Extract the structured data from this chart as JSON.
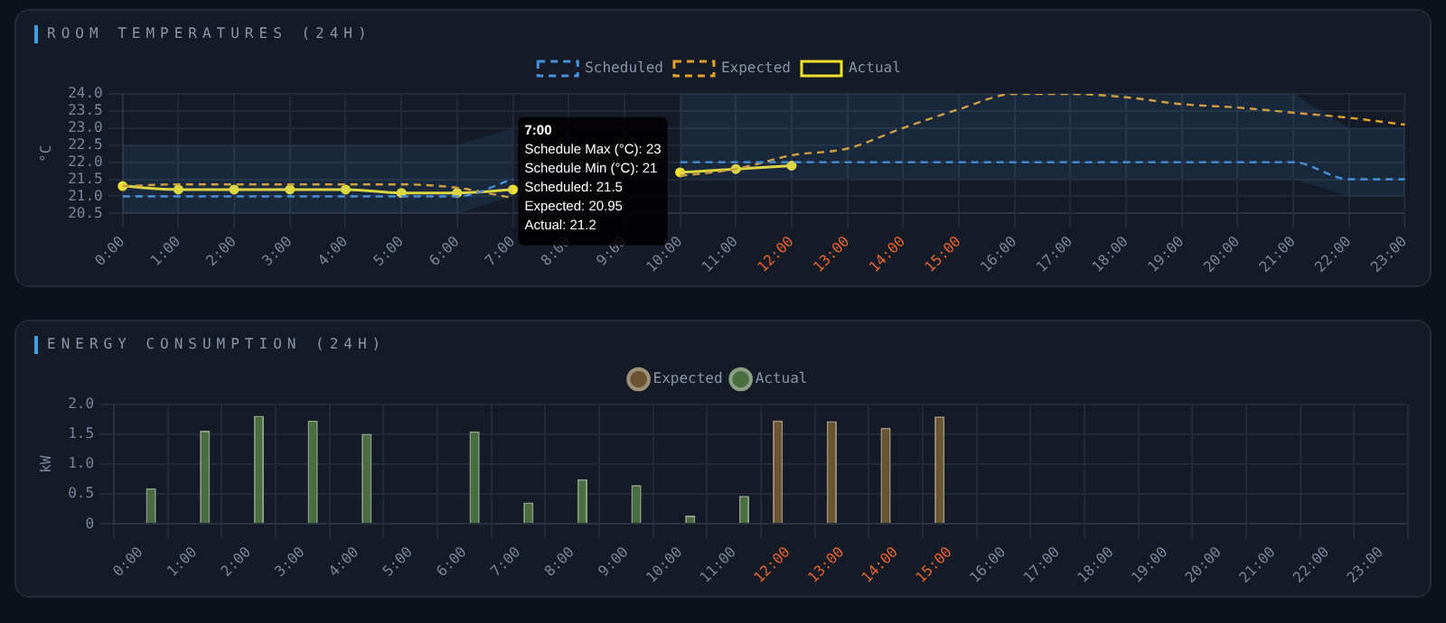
{
  "chart_data": [
    {
      "type": "line",
      "title": "ROOM TEMPERATURES (24H)",
      "ylabel": "°C",
      "categories": [
        "0:00",
        "1:00",
        "2:00",
        "3:00",
        "4:00",
        "5:00",
        "6:00",
        "7:00",
        "8:00",
        "9:00",
        "10:00",
        "11:00",
        "12:00",
        "13:00",
        "14:00",
        "15:00",
        "16:00",
        "17:00",
        "18:00",
        "19:00",
        "20:00",
        "21:00",
        "22:00",
        "23:00"
      ],
      "series": [
        {
          "name": "Scheduled",
          "color": "#4a90d9",
          "line_style": "dashed",
          "marker": "none",
          "values": [
            21,
            21,
            21,
            21,
            21,
            21,
            21,
            21.5,
            null,
            null,
            22,
            22,
            22,
            22,
            22,
            22,
            22,
            22,
            22,
            22,
            22,
            22,
            21.5,
            21.5
          ],
          "lower": [
            20.5,
            20.5,
            20.5,
            20.5,
            20.5,
            20.5,
            20.5,
            21,
            null,
            null,
            21.5,
            21.5,
            21.5,
            21.5,
            21.5,
            21.5,
            21.5,
            21.5,
            21.5,
            21.5,
            21.5,
            21.5,
            21,
            21
          ],
          "upper": [
            22.5,
            22.5,
            22.5,
            22.5,
            22.5,
            22.5,
            22.5,
            23,
            null,
            null,
            24,
            24,
            24,
            24,
            24,
            24,
            24,
            24,
            24,
            24,
            24,
            24,
            23,
            23
          ]
        },
        {
          "name": "Expected",
          "color": "#e0a030",
          "line_style": "dashed",
          "marker": "none",
          "values": [
            21.3,
            21.35,
            21.35,
            21.35,
            21.35,
            21.35,
            21.25,
            20.95,
            null,
            null,
            21.6,
            21.8,
            22.2,
            22.4,
            23,
            23.55,
            24,
            24,
            23.9,
            23.7,
            23.6,
            23.45,
            23.3,
            23.1
          ]
        },
        {
          "name": "Actual",
          "color": "#f0e030",
          "line_style": "solid",
          "marker": "circle",
          "values": [
            21.3,
            21.2,
            21.2,
            21.2,
            21.2,
            21.1,
            21.1,
            21.2,
            null,
            null,
            21.7,
            21.8,
            21.9,
            null,
            null,
            null,
            null,
            null,
            null,
            null,
            null,
            null,
            null,
            null
          ]
        }
      ],
      "ylim": [
        20.5,
        24
      ],
      "yticks": [
        {
          "value": 20.5,
          "label": "20.5"
        },
        {
          "value": 21,
          "label": "21.0"
        },
        {
          "value": 21.5,
          "label": "21.5"
        },
        {
          "value": 22,
          "label": "22.0"
        },
        {
          "value": 22.5,
          "label": "22.5"
        },
        {
          "value": 23,
          "label": "23.0"
        },
        {
          "value": 23.5,
          "label": "23.5"
        },
        {
          "value": 24,
          "label": "24.0"
        }
      ],
      "grid": true,
      "legend": "top",
      "annotations": [
        {
          "text": "7:00\nSchedule Max (°C): 23\nSchedule Min (°C): 21\nScheduled: 21.5\nExpected: 20.95\nActual: 21.2",
          "x": "7:00",
          "y": 23
        }
      ]
    },
    {
      "type": "bar",
      "title": "ENERGY CONSUMPTION (24H)",
      "ylabel": "kW",
      "categories": [
        "0:00",
        "1:00",
        "2:00",
        "3:00",
        "4:00",
        "5:00",
        "6:00",
        "7:00",
        "8:00",
        "9:00",
        "10:00",
        "11:00",
        "12:00",
        "13:00",
        "14:00",
        "15:00",
        "16:00",
        "17:00",
        "18:00",
        "19:00",
        "20:00",
        "21:00",
        "22:00",
        "23:00"
      ],
      "series": [
        {
          "name": "Expected",
          "color": "#6b5530",
          "values": [
            null,
            null,
            null,
            null,
            null,
            null,
            null,
            null,
            null,
            null,
            null,
            null,
            1.73,
            1.72,
            1.61,
            1.8,
            null,
            null,
            null,
            null,
            null,
            null,
            null,
            null
          ]
        },
        {
          "name": "Actual",
          "color": "#4a6e40",
          "values": [
            0.6,
            1.56,
            1.81,
            1.73,
            1.51,
            null,
            1.55,
            0.36,
            0.75,
            0.65,
            0.14,
            0.47,
            null,
            null,
            null,
            null,
            null,
            null,
            null,
            null,
            null,
            null,
            null,
            null
          ]
        }
      ],
      "ylim": [
        0,
        2
      ],
      "yticks": [
        0,
        {
          "value": 0.5,
          "label": "0.5"
        },
        {
          "value": 1,
          "label": "1.0"
        },
        {
          "value": 1.5,
          "label": "1.5"
        },
        {
          "value": 2,
          "label": "2.0"
        }
      ],
      "grid": true,
      "legend": "top"
    }
  ]
}
